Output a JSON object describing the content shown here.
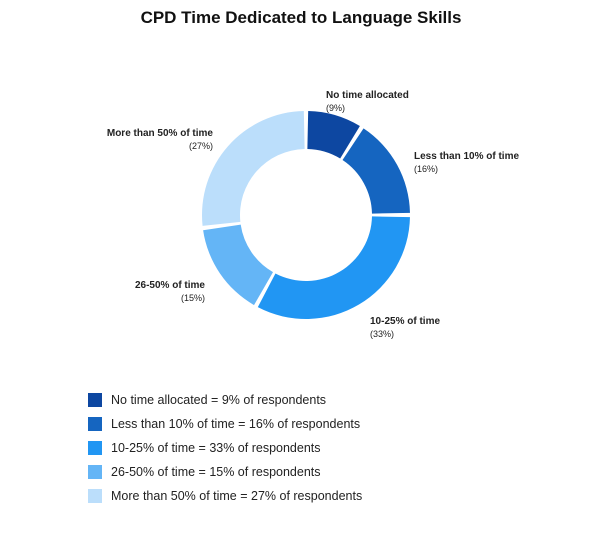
{
  "chart_data": {
    "type": "pie",
    "title": "CPD Time Dedicated to Language Skills",
    "donut": true,
    "categories": [
      "No time allocated",
      "Less than 10% of time",
      "10-25% of time",
      "26-50% of time",
      "More than 50% of time"
    ],
    "values": [
      9,
      16,
      33,
      15,
      27
    ],
    "colors": [
      "#0d47a1",
      "#1565c0",
      "#2196f3",
      "#64b5f6",
      "#bbdefb"
    ],
    "value_labels": [
      "(9%)",
      "(16%)",
      "(33%)",
      "(15%)",
      "(27%)"
    ],
    "legend": {
      "placement": "bottom-left",
      "entries": [
        "No time allocated = 9% of respondents",
        "Less than 10% of time = 16% of respondents",
        "10-25% of time = 33% of respondents",
        "26-50% of time = 15% of respondents",
        "More than 50% of time = 27% of respondents"
      ]
    }
  }
}
